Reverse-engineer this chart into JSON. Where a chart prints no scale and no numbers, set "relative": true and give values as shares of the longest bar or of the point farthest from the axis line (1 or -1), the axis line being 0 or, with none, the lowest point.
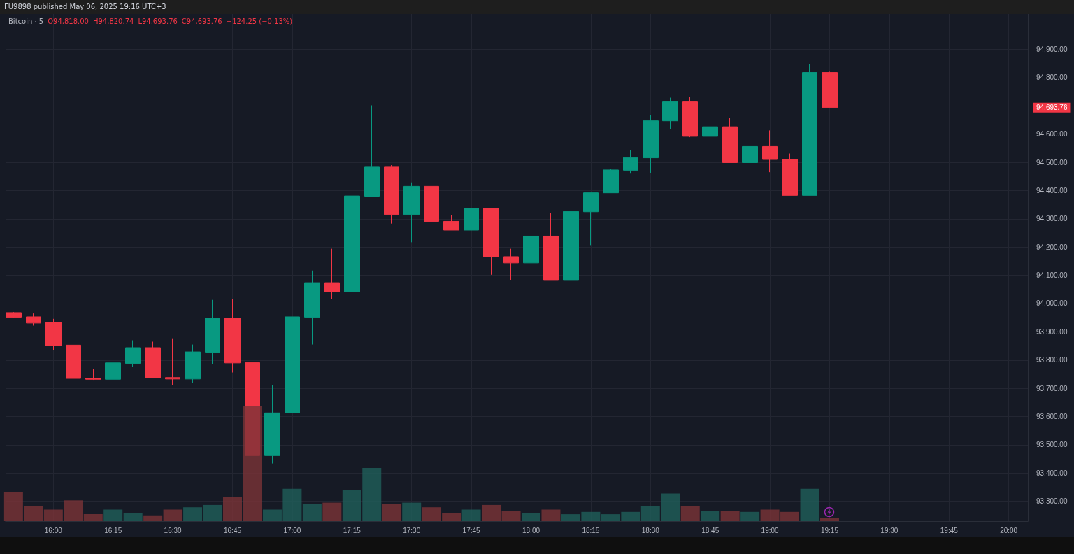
{
  "chart_data": [
    {
      "type": "candlestick",
      "title": "Bitcoin · 5",
      "annotations": [
        "FU9898 published May 06, 2025 19:16 UTC+3",
        "O94,818.00",
        "H94,820.74",
        "L94,693.76",
        "C94,693.76",
        "−124.25 (−0.13%)"
      ],
      "xlim": [
        15.8,
        20.08
      ],
      "xticks": [
        {
          "value": 16,
          "label": "16:00"
        },
        {
          "value": 16.25,
          "label": "16:15"
        },
        {
          "value": 16.5,
          "label": "16:30"
        },
        {
          "value": 16.75,
          "label": "16:45"
        },
        {
          "value": 17,
          "label": "17:00"
        },
        {
          "value": 17.25,
          "label": "17:15"
        },
        {
          "value": 17.5,
          "label": "17:30"
        },
        {
          "value": 17.75,
          "label": "17:45"
        },
        {
          "value": 18,
          "label": "18:00"
        },
        {
          "value": 18.25,
          "label": "18:15"
        },
        {
          "value": 18.5,
          "label": "18:30"
        },
        {
          "value": 18.75,
          "label": "18:45"
        },
        {
          "value": 19,
          "label": "19:00"
        },
        {
          "value": 19.25,
          "label": "19:15"
        },
        {
          "value": 19.5,
          "label": "19:30"
        },
        {
          "value": 19.75,
          "label": "19:45"
        },
        {
          "value": 20,
          "label": "20:00"
        }
      ],
      "ylim": [
        93230,
        95025
      ],
      "yticks": [
        {
          "value": 93300,
          "label": "93,300.00"
        },
        {
          "value": 93400,
          "label": "93,400.00"
        },
        {
          "value": 93500,
          "label": "93,500.00"
        },
        {
          "value": 93600,
          "label": "93,600.00"
        },
        {
          "value": 93700,
          "label": "93,700.00"
        },
        {
          "value": 93800,
          "label": "93,800.00"
        },
        {
          "value": 93900,
          "label": "93,900.00"
        },
        {
          "value": 94000,
          "label": "94,000.00"
        },
        {
          "value": 94100,
          "label": "94,100.00"
        },
        {
          "value": 94200,
          "label": "94,200.00"
        },
        {
          "value": 94300,
          "label": "94,300.00"
        },
        {
          "value": 94400,
          "label": "94,400.00"
        },
        {
          "value": 94500,
          "label": "94,500.00"
        },
        {
          "value": 94600,
          "label": "94,600.00"
        },
        {
          "value": 94700,
          "label": null
        },
        {
          "value": 94800,
          "label": "94,800.00"
        },
        {
          "value": 94900,
          "label": "94,900.00"
        }
      ],
      "grid": true,
      "ref_lines": [
        {
          "axis": "y",
          "value": 94693.76,
          "label": "94,693.76",
          "color": "#f23645",
          "line_style": "dotted"
        }
      ],
      "x": [
        15.8333,
        15.9167,
        16,
        16.0833,
        16.1667,
        16.25,
        16.3333,
        16.4167,
        16.5,
        16.5833,
        16.6667,
        16.75,
        16.8333,
        16.9167,
        17,
        17.0833,
        17.1667,
        17.25,
        17.3333,
        17.4167,
        17.5,
        17.5833,
        17.6667,
        17.75,
        17.8333,
        17.9167,
        18,
        18.0833,
        18.1667,
        18.25,
        18.3333,
        18.4167,
        18.5,
        18.5833,
        18.6667,
        18.75,
        18.8333,
        18.9167,
        19,
        19.0833,
        19.1667,
        19.25
      ],
      "ohlc": [
        [
          93968,
          93970,
          93950,
          93952
        ],
        [
          93953,
          93965,
          93922,
          93931
        ],
        [
          93933,
          93946,
          93836,
          93851
        ],
        [
          93853,
          93853,
          93722,
          93735
        ],
        [
          93736,
          93768,
          93730,
          93732
        ],
        [
          93732,
          93790,
          93730,
          93790
        ],
        [
          93788,
          93870,
          93777,
          93844
        ],
        [
          93844,
          93865,
          93735,
          93737
        ],
        [
          93738,
          93877,
          93712,
          93733
        ],
        [
          93733,
          93855,
          93719,
          93829
        ],
        [
          93828,
          94013,
          93785,
          93949
        ],
        [
          93949,
          94016,
          93756,
          93790
        ],
        [
          93791,
          93791,
          93375,
          93462
        ],
        [
          93462,
          93711,
          93434,
          93613
        ],
        [
          93613,
          94050,
          93612,
          93953
        ],
        [
          93952,
          94117,
          93855,
          94074
        ],
        [
          94074,
          94194,
          94015,
          94042
        ],
        [
          94042,
          94457,
          94042,
          94381
        ],
        [
          94380,
          94702,
          94380,
          94483
        ],
        [
          94483,
          94490,
          94283,
          94315
        ],
        [
          94315,
          94429,
          94217,
          94415
        ],
        [
          94415,
          94473,
          94291,
          94291
        ],
        [
          94291,
          94312,
          94260,
          94260
        ],
        [
          94260,
          94352,
          94182,
          94337
        ],
        [
          94337,
          94337,
          94102,
          94166
        ],
        [
          94166,
          94194,
          94083,
          94144
        ],
        [
          94144,
          94288,
          94130,
          94239
        ],
        [
          94239,
          94321,
          94082,
          94082
        ],
        [
          94082,
          94326,
          94078,
          94326
        ],
        [
          94325,
          94392,
          94207,
          94392
        ],
        [
          94392,
          94476,
          94392,
          94473
        ],
        [
          94472,
          94543,
          94460,
          94517
        ],
        [
          94516,
          94667,
          94463,
          94647
        ],
        [
          94647,
          94729,
          94617,
          94714
        ],
        [
          94714,
          94732,
          94589,
          94592
        ],
        [
          94592,
          94657,
          94549,
          94626
        ],
        [
          94626,
          94657,
          94499,
          94499
        ],
        [
          94499,
          94618,
          94499,
          94556
        ],
        [
          94556,
          94613,
          94465,
          94510
        ],
        [
          94511,
          94531,
          94383,
          94383
        ],
        [
          94383,
          94847,
          94383,
          94818
        ],
        [
          94818,
          94820.74,
          94693.76,
          94693.76
        ]
      ],
      "colors": [
        "#f23645",
        "#f23645",
        "#f23645",
        "#f23645",
        "#f23645",
        "#089981",
        "#089981",
        "#f23645",
        "#f23645",
        "#089981",
        "#089981",
        "#f23645",
        "#f23645",
        "#089981",
        "#089981",
        "#089981",
        "#f23645",
        "#089981",
        "#089981",
        "#f23645",
        "#089981",
        "#f23645",
        "#f23645",
        "#089981",
        "#f23645",
        "#f23645",
        "#089981",
        "#f23645",
        "#089981",
        "#089981",
        "#089981",
        "#089981",
        "#089981",
        "#089981",
        "#f23645",
        "#089981",
        "#f23645",
        "#089981",
        "#f23645",
        "#f23645",
        "#089981",
        "#f23645"
      ]
    },
    {
      "type": "bar",
      "relative": true,
      "xlim": [
        15.8,
        20.08
      ],
      "x": [
        15.8333,
        15.9167,
        16,
        16.0833,
        16.1667,
        16.25,
        16.3333,
        16.4167,
        16.5,
        16.5833,
        16.6667,
        16.75,
        16.8333,
        16.9167,
        17,
        17.0833,
        17.1667,
        17.25,
        17.3333,
        17.4167,
        17.5,
        17.5833,
        17.6667,
        17.75,
        17.8333,
        17.9167,
        18,
        18.0833,
        18.1667,
        18.25,
        18.3333,
        18.4167,
        18.5,
        18.5833,
        18.6667,
        18.75,
        18.8333,
        18.9167,
        19,
        19.0833,
        19.1667,
        19.25
      ],
      "values": [
        0.25,
        0.13,
        0.1,
        0.18,
        0.06,
        0.1,
        0.07,
        0.05,
        0.1,
        0.12,
        0.14,
        0.21,
        1,
        0.1,
        0.28,
        0.15,
        0.16,
        0.27,
        0.46,
        0.15,
        0.16,
        0.12,
        0.07,
        0.1,
        0.14,
        0.09,
        0.07,
        0.1,
        0.06,
        0.08,
        0.06,
        0.08,
        0.13,
        0.24,
        0.13,
        0.09,
        0.09,
        0.08,
        0.1,
        0.08,
        0.28,
        0.03
      ],
      "colors": [
        "#7a3337",
        "#7a3337",
        "#7a3337",
        "#7a3337",
        "#7a3337",
        "#1f5f5a",
        "#1f5f5a",
        "#7a3337",
        "#7a3337",
        "#1f5f5a",
        "#1f5f5a",
        "#7a3337",
        "#7a3337",
        "#1f5f5a",
        "#1f5f5a",
        "#1f5f5a",
        "#7a3337",
        "#1f5f5a",
        "#1f5f5a",
        "#7a3337",
        "#1f5f5a",
        "#7a3337",
        "#7a3337",
        "#1f5f5a",
        "#7a3337",
        "#7a3337",
        "#1f5f5a",
        "#7a3337",
        "#1f5f5a",
        "#1f5f5a",
        "#1f5f5a",
        "#1f5f5a",
        "#1f5f5a",
        "#1f5f5a",
        "#7a3337",
        "#1f5f5a",
        "#7a3337",
        "#1f5f5a",
        "#7a3337",
        "#7a3337",
        "#1f5f5a",
        "#7a3337"
      ]
    }
  ]
}
